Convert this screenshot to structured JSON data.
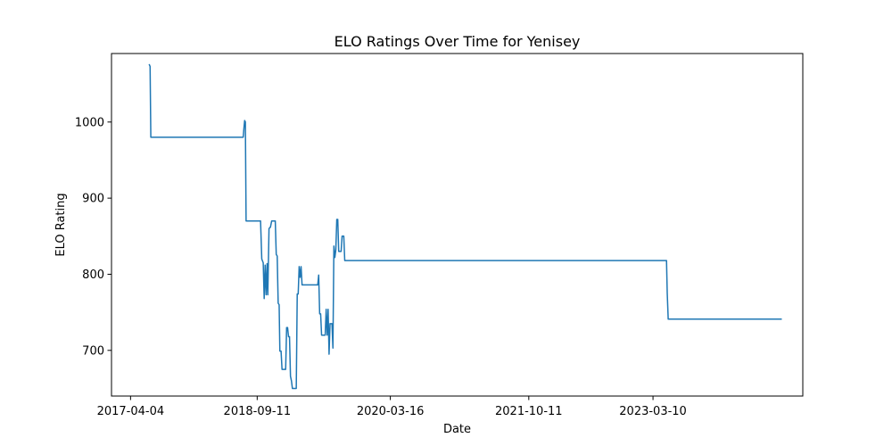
{
  "chart_data": {
    "type": "line",
    "title": "ELO Ratings Over Time for Yenisey",
    "xlabel": "Date",
    "ylabel": "ELO Rating",
    "xlim": [
      "2017-01-15",
      "2024-11-20"
    ],
    "ylim": [
      640,
      1090
    ],
    "x_ticks": [
      "2017-04-04",
      "2018-09-11",
      "2020-03-16",
      "2021-10-11",
      "2023-03-10"
    ],
    "y_ticks": [
      700,
      800,
      900,
      1000
    ],
    "grid": false,
    "legend": "none",
    "series": [
      {
        "color": "#1f77b4",
        "points": [
          [
            "2017-06-20",
            1076
          ],
          [
            "2017-06-24",
            1073
          ],
          [
            "2017-06-27",
            980
          ],
          [
            "2018-07-15",
            980
          ],
          [
            "2018-07-18",
            992
          ],
          [
            "2018-07-21",
            1002
          ],
          [
            "2018-07-24",
            1000
          ],
          [
            "2018-07-27",
            870
          ],
          [
            "2018-08-08",
            870
          ],
          [
            "2018-09-15",
            870
          ],
          [
            "2018-09-25",
            870
          ],
          [
            "2018-09-30",
            820
          ],
          [
            "2018-10-06",
            815
          ],
          [
            "2018-10-10",
            768
          ],
          [
            "2018-10-14",
            812
          ],
          [
            "2018-10-18",
            773
          ],
          [
            "2018-10-22",
            814
          ],
          [
            "2018-10-25",
            773
          ],
          [
            "2018-10-30",
            860
          ],
          [
            "2018-11-05",
            862
          ],
          [
            "2018-11-10",
            870
          ],
          [
            "2018-11-25",
            870
          ],
          [
            "2018-11-29",
            826
          ],
          [
            "2018-12-03",
            824
          ],
          [
            "2018-12-07",
            762
          ],
          [
            "2018-12-11",
            760
          ],
          [
            "2018-12-14",
            699
          ],
          [
            "2018-12-19",
            699
          ],
          [
            "2018-12-23",
            675
          ],
          [
            "2019-01-07",
            675
          ],
          [
            "2019-01-11",
            730
          ],
          [
            "2019-01-15",
            730
          ],
          [
            "2019-01-19",
            718
          ],
          [
            "2019-01-23",
            718
          ],
          [
            "2019-01-27",
            666
          ],
          [
            "2019-01-31",
            660
          ],
          [
            "2019-02-04",
            650
          ],
          [
            "2019-02-20",
            650
          ],
          [
            "2019-02-24",
            774
          ],
          [
            "2019-02-28",
            774
          ],
          [
            "2019-03-04",
            810
          ],
          [
            "2019-03-08",
            796
          ],
          [
            "2019-03-12",
            810
          ],
          [
            "2019-03-16",
            786
          ],
          [
            "2019-05-10",
            786
          ],
          [
            "2019-05-20",
            786
          ],
          [
            "2019-05-24",
            799
          ],
          [
            "2019-05-28",
            748
          ],
          [
            "2019-06-01",
            748
          ],
          [
            "2019-06-05",
            720
          ],
          [
            "2019-06-20",
            720
          ],
          [
            "2019-06-24",
            754
          ],
          [
            "2019-06-28",
            720
          ],
          [
            "2019-07-02",
            754
          ],
          [
            "2019-07-06",
            695
          ],
          [
            "2019-07-10",
            735
          ],
          [
            "2019-07-18",
            735
          ],
          [
            "2019-07-22",
            703
          ],
          [
            "2019-07-26",
            837
          ],
          [
            "2019-07-30",
            822
          ],
          [
            "2019-08-03",
            832
          ],
          [
            "2019-08-07",
            872
          ],
          [
            "2019-08-11",
            872
          ],
          [
            "2019-08-15",
            830
          ],
          [
            "2019-08-25",
            830
          ],
          [
            "2019-08-29",
            850
          ],
          [
            "2019-09-05",
            850
          ],
          [
            "2019-09-09",
            818
          ],
          [
            "2023-05-05",
            818
          ],
          [
            "2023-05-08",
            775
          ],
          [
            "2023-05-12",
            741
          ],
          [
            "2024-08-25",
            741
          ]
        ]
      }
    ]
  }
}
